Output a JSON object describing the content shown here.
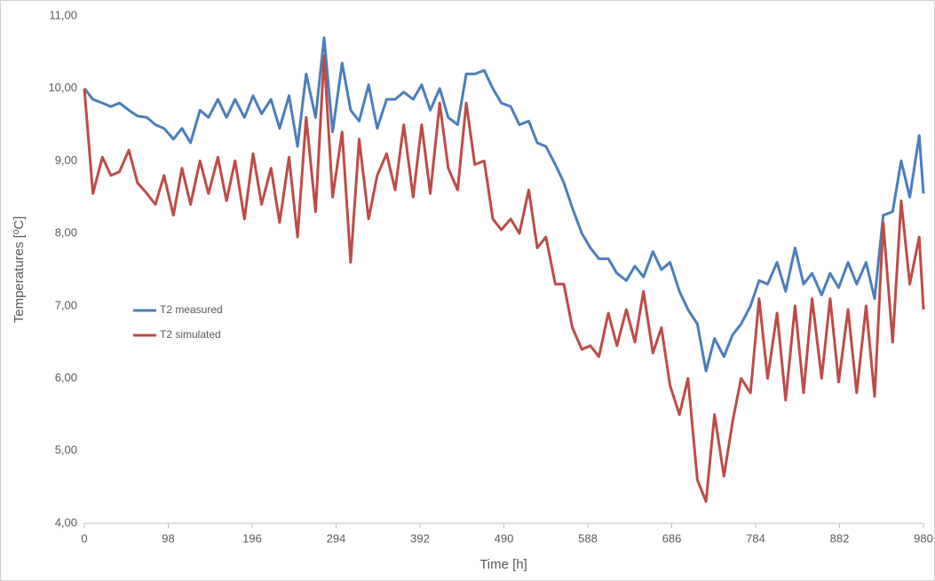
{
  "chart_data": {
    "type": "line",
    "x_label": "Time [h]",
    "y_label": "Temperatures [ºC]",
    "xlim": [
      0,
      980
    ],
    "xticks": [
      0,
      98,
      196,
      294,
      392,
      490,
      588,
      686,
      784,
      882,
      980
    ],
    "ylim": [
      4,
      11
    ],
    "yticks": [
      {
        "value": 4,
        "label": "4,00"
      },
      {
        "value": 5,
        "label": "5,00"
      },
      {
        "value": 6,
        "label": "6,00"
      },
      {
        "value": 7,
        "label": "7,00"
      },
      {
        "value": 8,
        "label": "8,00"
      },
      {
        "value": 9,
        "label": "9,00"
      },
      {
        "value": 10,
        "label": "10,00"
      },
      {
        "value": 11,
        "label": "11,00"
      }
    ],
    "grid": false,
    "legend": "left",
    "x": [
      0,
      10,
      21,
      31,
      41,
      52,
      62,
      73,
      83,
      93,
      104,
      114,
      124,
      135,
      145,
      156,
      166,
      176,
      187,
      197,
      207,
      218,
      228,
      239,
      249,
      259,
      270,
      280,
      290,
      301,
      311,
      321,
      332,
      342,
      353,
      363,
      373,
      384,
      394,
      404,
      415,
      425,
      436,
      446,
      456,
      467,
      477,
      487,
      498,
      508,
      519,
      529,
      539,
      550,
      560,
      570,
      581,
      591,
      601,
      612,
      622,
      633,
      643,
      653,
      664,
      674,
      684,
      695,
      705,
      716,
      726,
      736,
      747,
      757,
      767,
      778,
      788,
      798,
      809,
      819,
      830,
      840,
      850,
      861,
      871,
      881,
      892,
      902,
      913,
      923,
      933,
      944,
      954,
      964,
      975,
      980
    ],
    "series": [
      {
        "name": "T2 measured",
        "color": "#4a7ebb",
        "values": [
          10.0,
          9.85,
          9.8,
          9.75,
          9.8,
          9.7,
          9.62,
          9.6,
          9.5,
          9.45,
          9.3,
          9.45,
          9.25,
          9.7,
          9.6,
          9.85,
          9.6,
          9.85,
          9.6,
          9.9,
          9.65,
          9.85,
          9.45,
          9.9,
          9.2,
          10.2,
          9.6,
          10.7,
          9.4,
          10.35,
          9.7,
          9.55,
          10.05,
          9.45,
          9.85,
          9.85,
          9.95,
          9.85,
          10.05,
          9.7,
          10.0,
          9.6,
          9.5,
          10.2,
          10.2,
          10.25,
          10.0,
          9.8,
          9.75,
          9.5,
          9.55,
          9.25,
          9.2,
          8.95,
          8.7,
          8.35,
          8.0,
          7.8,
          7.65,
          7.65,
          7.45,
          7.35,
          7.55,
          7.4,
          7.75,
          7.5,
          7.6,
          7.2,
          6.95,
          6.75,
          6.1,
          6.55,
          6.3,
          6.6,
          6.75,
          7.0,
          7.35,
          7.3,
          7.6,
          7.2,
          7.8,
          7.3,
          7.45,
          7.15,
          7.45,
          7.25,
          7.6,
          7.3,
          7.6,
          7.1,
          8.25,
          8.3,
          9.0,
          8.5,
          9.35,
          8.55
        ]
      },
      {
        "name": "T2 simulated",
        "color": "#be4b48",
        "values": [
          10.0,
          8.55,
          9.05,
          8.8,
          8.85,
          9.15,
          8.7,
          8.55,
          8.4,
          8.8,
          8.25,
          8.9,
          8.4,
          9.0,
          8.55,
          9.05,
          8.45,
          9.0,
          8.2,
          9.1,
          8.4,
          8.9,
          8.15,
          9.05,
          7.95,
          9.6,
          8.3,
          10.45,
          8.5,
          9.4,
          7.6,
          9.3,
          8.2,
          8.8,
          9.1,
          8.6,
          9.5,
          8.5,
          9.5,
          8.55,
          9.8,
          8.9,
          8.6,
          9.8,
          8.95,
          9.0,
          8.2,
          8.05,
          8.2,
          8.0,
          8.6,
          7.8,
          7.95,
          7.3,
          7.3,
          6.7,
          6.4,
          6.45,
          6.3,
          6.9,
          6.45,
          6.95,
          6.5,
          7.2,
          6.35,
          6.7,
          5.9,
          5.5,
          6.0,
          4.6,
          4.3,
          5.5,
          4.65,
          5.4,
          6.0,
          5.8,
          7.1,
          6.0,
          6.9,
          5.7,
          7.0,
          5.8,
          7.1,
          6.0,
          7.1,
          5.95,
          6.95,
          5.8,
          7.0,
          5.75,
          8.15,
          6.5,
          8.45,
          7.3,
          7.95,
          6.95
        ]
      }
    ]
  }
}
